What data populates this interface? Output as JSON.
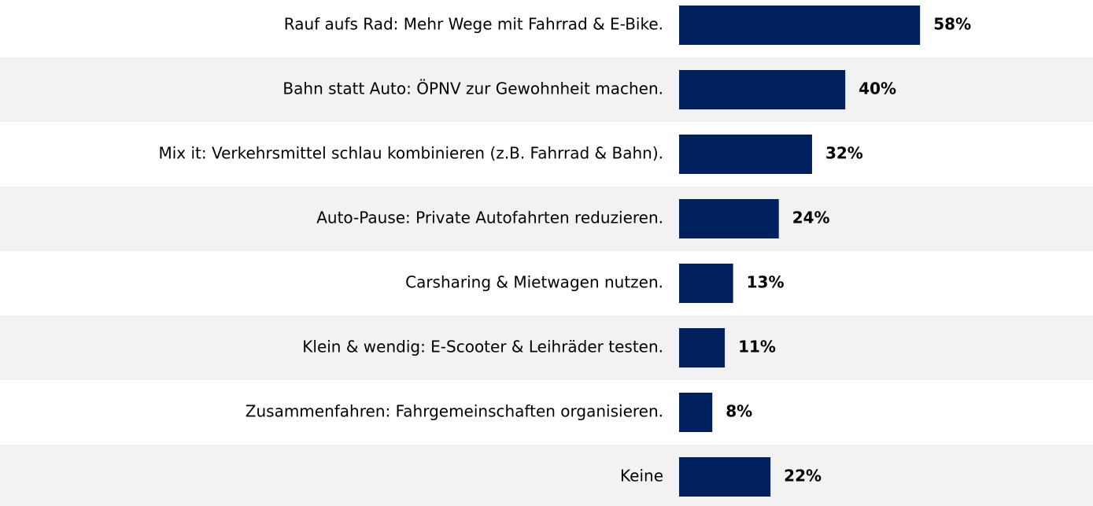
{
  "chart_data": {
    "type": "bar",
    "orientation": "horizontal",
    "categories": [
      "Rauf aufs Rad: Mehr Wege mit Fahrrad & E-Bike.",
      "Bahn statt Auto: ÖPNV zur Gewohnheit machen.",
      "Mix it: Verkehrsmittel schlau kombinieren (z.B. Fahrrad & Bahn).",
      "Auto-Pause: Private Autofahrten reduzieren.",
      "Carsharing & Mietwagen nutzen.",
      "Klein & wendig: E-Scooter & Leihräder testen.",
      "Zusammenfahren: Fahrgemeinschaften organisieren.",
      "Keine"
    ],
    "values": [
      58,
      40,
      32,
      24,
      13,
      11,
      8,
      22
    ],
    "value_labels": [
      "58%",
      "40%",
      "32%",
      "24%",
      "13%",
      "11%",
      "8%",
      "22%"
    ],
    "color": "#002060"
  }
}
